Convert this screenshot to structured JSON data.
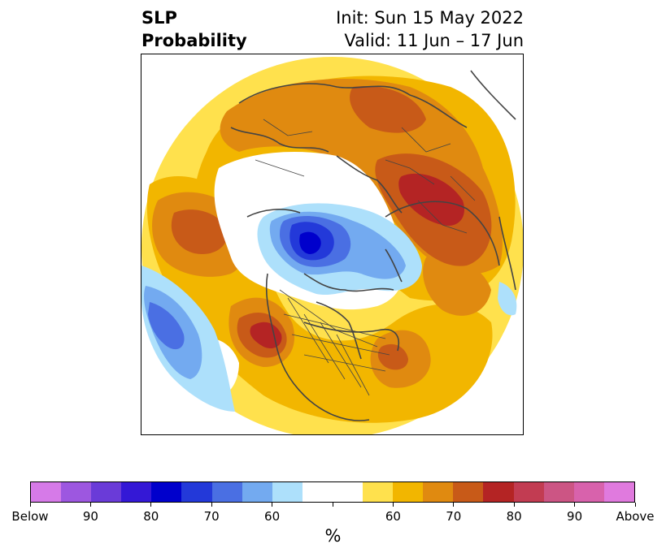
{
  "title": {
    "left_line1": "SLP",
    "left_line2": "Probability",
    "right_line1": "Init: Sun 15 May 2022",
    "right_line2": "Valid: 11 Jun – 17 Jun"
  },
  "colorbar": {
    "unit": "%",
    "colors": [
      "#d67ae8",
      "#9d57e0",
      "#6a3bd8",
      "#3418d6",
      "#0000cc",
      "#2339d9",
      "#4a6fe3",
      "#73aaf0",
      "#ade0fb",
      "#ffffff",
      "#ffffff",
      "#ffe14d",
      "#f2b600",
      "#e08a10",
      "#c85a18",
      "#b42424",
      "#c23c52",
      "#cc5584",
      "#d862ac",
      "#e07ade"
    ],
    "tick_labels": [
      "Below",
      "90",
      "80",
      "70",
      "60",
      "",
      "60",
      "70",
      "80",
      "90",
      "Above"
    ]
  },
  "map": {
    "projection": "north-polar-stereographic",
    "colors": {
      "yellow": "#ffe14d",
      "gold": "#f2b600",
      "orange": "#e08a10",
      "dark_orange": "#c85a18",
      "red": "#b42424",
      "light_blue": "#ade0fb",
      "mid_blue": "#73aaf0",
      "blue": "#4a6fe3",
      "royal_blue": "#2339d9",
      "deep_blue": "#0000cc",
      "coastline": "#444444"
    }
  }
}
